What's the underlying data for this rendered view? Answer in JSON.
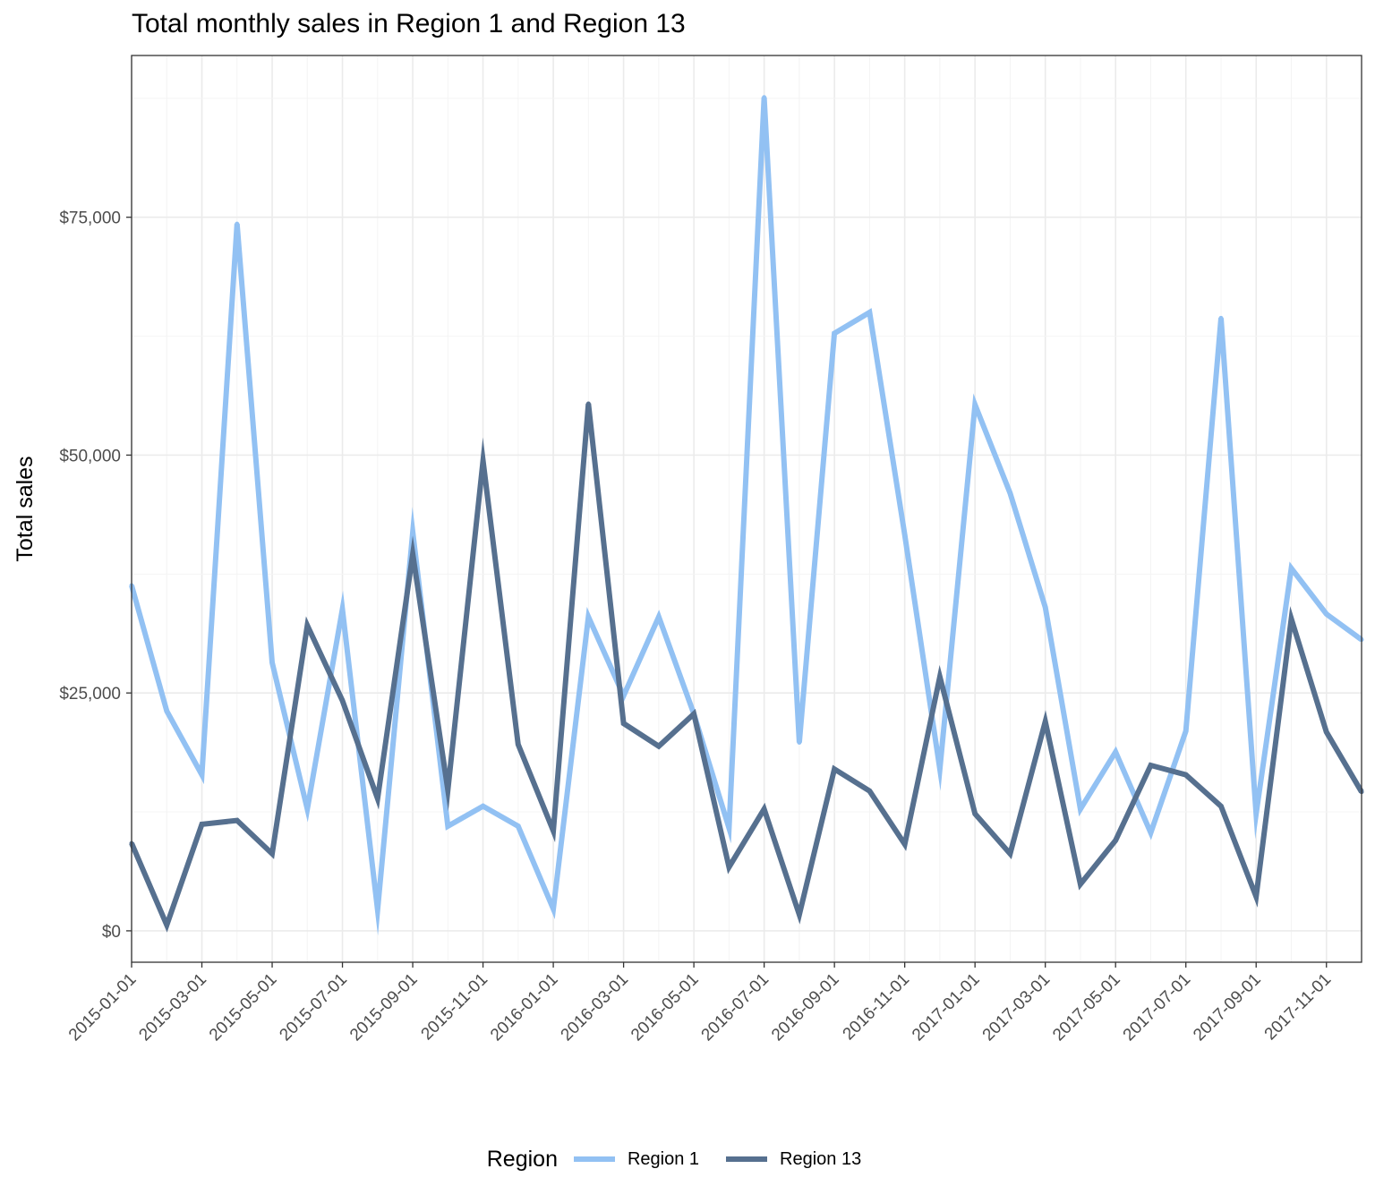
{
  "chart_data": {
    "type": "line",
    "title": "Total monthly sales in Region 1 and Region 13",
    "xlabel": "",
    "ylabel": "Total sales",
    "x": [
      "2015-01-01",
      "2015-02-01",
      "2015-03-01",
      "2015-04-01",
      "2015-05-01",
      "2015-06-01",
      "2015-07-01",
      "2015-08-01",
      "2015-09-01",
      "2015-10-01",
      "2015-11-01",
      "2015-12-01",
      "2016-01-01",
      "2016-02-01",
      "2016-03-01",
      "2016-04-01",
      "2016-05-01",
      "2016-06-01",
      "2016-07-01",
      "2016-08-01",
      "2016-09-01",
      "2016-10-01",
      "2016-11-01",
      "2016-12-01",
      "2017-01-01",
      "2017-02-01",
      "2017-03-01",
      "2017-04-01",
      "2017-05-01",
      "2017-06-01",
      "2017-07-01",
      "2017-08-01",
      "2017-09-01",
      "2017-10-01",
      "2017-11-01",
      "2017-12-01"
    ],
    "x_tick_labels": [
      "2015-01-01",
      "2015-03-01",
      "2015-05-01",
      "2015-07-01",
      "2015-09-01",
      "2015-11-01",
      "2016-01-01",
      "2016-03-01",
      "2016-05-01",
      "2016-07-01",
      "2016-09-01",
      "2016-11-01",
      "2017-01-01",
      "2017-03-01",
      "2017-05-01",
      "2017-07-01",
      "2017-09-01",
      "2017-11-01"
    ],
    "y_ticks": [
      0,
      25000,
      50000,
      75000
    ],
    "y_tick_labels": [
      "$0",
      "$25,000",
      "$50,000",
      "$75,000"
    ],
    "ylim": [
      -3300,
      92000
    ],
    "grid": true,
    "legend_position": "bottom",
    "legend_title": "Region",
    "series": [
      {
        "name": "Region 1",
        "color": "#92c1f3",
        "values": [
          36300,
          23100,
          16400,
          74300,
          28200,
          12800,
          33800,
          2200,
          41900,
          11000,
          13100,
          11000,
          2300,
          33000,
          24700,
          33000,
          22800,
          10800,
          87600,
          19800,
          62800,
          65000,
          41600,
          17000,
          55300,
          46000,
          34000,
          12800,
          18800,
          10300,
          21000,
          64400,
          12300,
          38100,
          33300,
          30600
        ]
      },
      {
        "name": "Region 13",
        "color": "#56708f",
        "values": [
          9200,
          600,
          11200,
          11600,
          8100,
          32100,
          24200,
          13900,
          39600,
          14800,
          49400,
          19600,
          10500,
          55400,
          21800,
          19400,
          22800,
          6700,
          12800,
          1700,
          17000,
          14700,
          9100,
          26700,
          12300,
          8100,
          22000,
          4900,
          9500,
          17400,
          16400,
          13100,
          3600,
          32800,
          20900,
          14600
        ]
      }
    ]
  }
}
